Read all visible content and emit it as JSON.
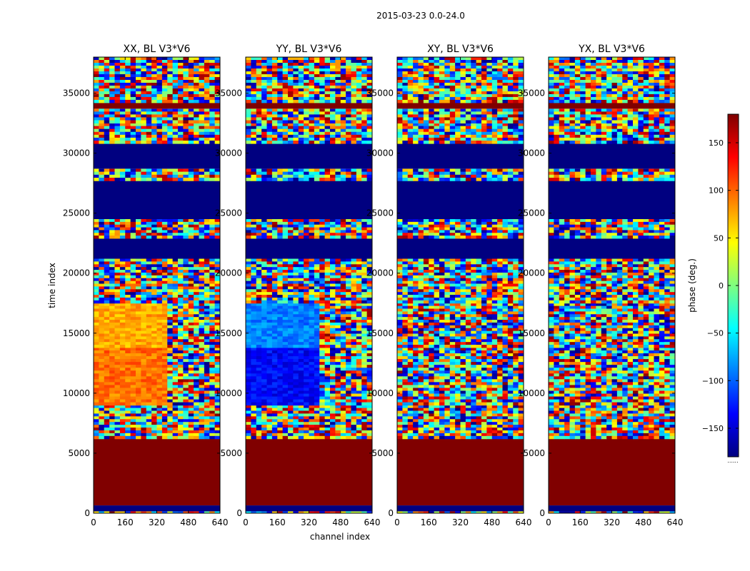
{
  "figure": {
    "suptitle": "2015-03-23 0.0-24.0"
  },
  "chart_data": {
    "type": "heatmap",
    "subtitle": "2015-03-23 0.0-24.0",
    "shared_x_label": "channel index",
    "shared_y_label": "time index",
    "xlim": [
      0,
      640
    ],
    "ylim": [
      0,
      38000
    ],
    "x_ticks": [
      "0",
      "160",
      "320",
      "480",
      "640"
    ],
    "y_ticks": [
      "0",
      "5000",
      "10000",
      "15000",
      "20000",
      "25000",
      "30000",
      "35000"
    ],
    "y_tick_values": [
      0,
      5000,
      10000,
      15000,
      20000,
      25000,
      30000,
      35000
    ],
    "x_tick_values": [
      0,
      160,
      320,
      480,
      640
    ],
    "colorbar": {
      "label": "phase (deg.)",
      "vmin": -180,
      "vmax": 180,
      "colormap": "jet",
      "ticks": [
        "150",
        "100",
        "50",
        "0",
        "−50",
        "−100",
        "−150"
      ],
      "tick_values": [
        150,
        100,
        50,
        0,
        -50,
        -100,
        -150
      ],
      "bottom_label": "......"
    },
    "panels": [
      {
        "title": "XX, BL V3*V6",
        "pol": "XX"
      },
      {
        "title": "YY, BL V3*V6",
        "pol": "YY"
      },
      {
        "title": "XY, BL V3*V6",
        "pol": "XY"
      },
      {
        "title": "YX, BL V3*V6",
        "pol": "YX"
      }
    ],
    "bands": [
      {
        "from": 0,
        "to": 150,
        "kind": "noise"
      },
      {
        "from": 150,
        "to": 650,
        "kind": "solid",
        "value": -180
      },
      {
        "from": 650,
        "to": 6200,
        "kind": "solid",
        "value": 180
      },
      {
        "from": 6200,
        "to": 9000,
        "kind": "noise"
      },
      {
        "from": 9000,
        "to": 13800,
        "kind": "noise",
        "xx": 95,
        "yy": -135
      },
      {
        "from": 13800,
        "to": 17500,
        "kind": "noise",
        "xx": 75,
        "yy": -90
      },
      {
        "from": 17500,
        "to": 21200,
        "kind": "noise"
      },
      {
        "from": 21200,
        "to": 22900,
        "kind": "solid",
        "value": -180
      },
      {
        "from": 22900,
        "to": 24500,
        "kind": "noise"
      },
      {
        "from": 24500,
        "to": 27700,
        "kind": "solid",
        "value": -180
      },
      {
        "from": 27700,
        "to": 28700,
        "kind": "noise"
      },
      {
        "from": 28700,
        "to": 30800,
        "kind": "solid",
        "value": -180
      },
      {
        "from": 30800,
        "to": 32500,
        "kind": "noise"
      },
      {
        "from": 32500,
        "to": 33700,
        "kind": "noise"
      },
      {
        "from": 33700,
        "to": 34200,
        "kind": "solid",
        "value": 180
      },
      {
        "from": 34200,
        "to": 38000,
        "kind": "noise"
      }
    ]
  }
}
